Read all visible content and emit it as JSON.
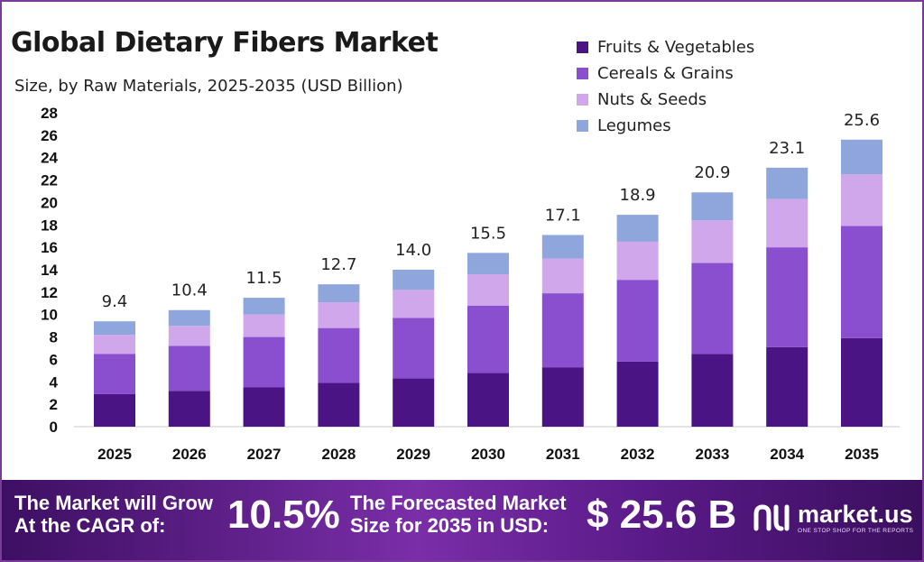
{
  "header": {
    "title": "Global Dietary Fibers Market",
    "subtitle": "Size, by Raw Materials, 2025-2035 (USD Billion)"
  },
  "legend": [
    {
      "label": "Fruits & Vegetables",
      "color": "#4b1485"
    },
    {
      "label": "Cereals & Grains",
      "color": "#8a4fcf"
    },
    {
      "label": "Nuts & Seeds",
      "color": "#d0a7ea"
    },
    {
      "label": "Legumes",
      "color": "#8fa6dc"
    }
  ],
  "chart_data": {
    "type": "bar",
    "stacked": true,
    "title": "Global Dietary Fibers Market",
    "subtitle": "Size, by Raw Materials, 2025-2035 (USD Billion)",
    "categories": [
      "2025",
      "2026",
      "2027",
      "2028",
      "2029",
      "2030",
      "2031",
      "2032",
      "2033",
      "2034",
      "2035"
    ],
    "series": [
      {
        "name": "Fruits & Vegetables",
        "color": "#4b1485",
        "values": [
          2.9,
          3.2,
          3.5,
          3.9,
          4.3,
          4.8,
          5.3,
          5.8,
          6.5,
          7.1,
          7.9
        ]
      },
      {
        "name": "Cereals & Grains",
        "color": "#8a4fcf",
        "values": [
          3.6,
          4.0,
          4.5,
          4.9,
          5.4,
          6.0,
          6.6,
          7.3,
          8.1,
          8.9,
          10.0
        ]
      },
      {
        "name": "Nuts & Seeds",
        "color": "#d0a7ea",
        "values": [
          1.7,
          1.8,
          2.0,
          2.3,
          2.5,
          2.8,
          3.1,
          3.4,
          3.8,
          4.3,
          4.6
        ]
      },
      {
        "name": "Legumes",
        "color": "#8fa6dc",
        "values": [
          1.2,
          1.4,
          1.5,
          1.6,
          1.8,
          1.9,
          2.1,
          2.4,
          2.5,
          2.8,
          3.1
        ]
      }
    ],
    "totals": [
      "9.4",
      "10.4",
      "11.5",
      "12.7",
      "14.0",
      "15.5",
      "17.1",
      "18.9",
      "20.9",
      "23.1",
      "25.6"
    ],
    "yticks": [
      0,
      2,
      4,
      6,
      8,
      10,
      12,
      14,
      16,
      18,
      20,
      22,
      24,
      26,
      28
    ],
    "ylim": [
      0,
      28
    ],
    "xlabel": "",
    "ylabel": "",
    "legend_position": "top-right"
  },
  "footer": {
    "cagr_label_line1": "The Market will Grow",
    "cagr_label_line2": "At the CAGR of:",
    "cagr_value": "10.5%",
    "forecast_label_line1": "The Forecasted Market",
    "forecast_label_line2": "Size for 2035 in USD:",
    "forecast_value": "$ 25.6 B",
    "brand_name": "market.us",
    "brand_tagline": "ONE STOP SHOP FOR THE REPORTS"
  }
}
